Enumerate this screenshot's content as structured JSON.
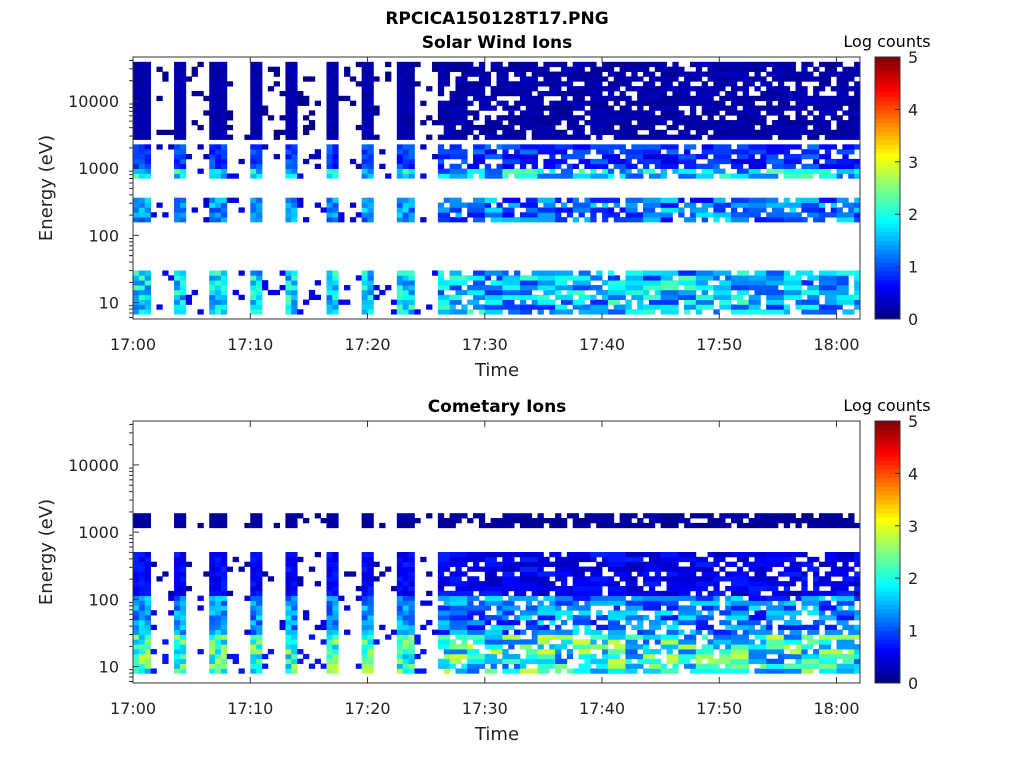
{
  "figure": {
    "title": "RPCICA150128T17.PNG"
  },
  "chart_data": [
    {
      "type": "heatmap",
      "title": "Solar Wind Ions",
      "xlabel": "Time",
      "ylabel": "Energy (eV)",
      "x_tick_labels": [
        "17:00",
        "17:10",
        "17:20",
        "17:30",
        "17:40",
        "17:50",
        "18:00"
      ],
      "x_ticks_minutes": [
        0,
        10,
        20,
        30,
        40,
        50,
        60
      ],
      "xlim_minutes": [
        0,
        62
      ],
      "y_scale": "log",
      "ylim": [
        5.7,
        45000
      ],
      "y_tick_labels": [
        "10",
        "100",
        "1000",
        "10000"
      ],
      "y_ticks": [
        10,
        100,
        1000,
        10000
      ],
      "colorbar": {
        "label": "Log counts",
        "range": [
          0,
          5
        ],
        "tick_labels": [
          "0",
          "1",
          "2",
          "3",
          "4",
          "5"
        ],
        "colormap": "jet"
      },
      "grid": false,
      "phases": [
        {
          "minutes": [
            0,
            26
          ],
          "cadence_min": 3.2,
          "description": "intermittent sweeps"
        },
        {
          "minutes": [
            26,
            62
          ],
          "cadence_min": 3.2,
          "description": "continuous broadband"
        }
      ],
      "bands": [
        {
          "energy_eV": [
            7,
            30
          ],
          "log_counts_max": 2.3
        },
        {
          "energy_eV": [
            150,
            350
          ],
          "log_counts_max": 1.8
        },
        {
          "energy_eV": [
            650,
            950
          ],
          "log_counts_max": 2.4
        },
        {
          "energy_eV": [
            1000,
            2200
          ],
          "log_counts_max": 1.2
        },
        {
          "energy_eV": [
            2500,
            40000
          ],
          "log_counts_max": 0.3
        }
      ]
    },
    {
      "type": "heatmap",
      "title": "Cometary Ions",
      "xlabel": "Time",
      "ylabel": "Energy (eV)",
      "x_tick_labels": [
        "17:00",
        "17:10",
        "17:20",
        "17:30",
        "17:40",
        "17:50",
        "18:00"
      ],
      "x_ticks_minutes": [
        0,
        10,
        20,
        30,
        40,
        50,
        60
      ],
      "xlim_minutes": [
        0,
        62
      ],
      "y_scale": "log",
      "ylim": [
        5.7,
        45000
      ],
      "y_tick_labels": [
        "10",
        "100",
        "1000",
        "10000"
      ],
      "y_ticks": [
        10,
        100,
        1000,
        10000
      ],
      "colorbar": {
        "label": "Log counts",
        "range": [
          0,
          5
        ],
        "tick_labels": [
          "0",
          "1",
          "2",
          "3",
          "4",
          "5"
        ],
        "colormap": "jet"
      },
      "grid": false,
      "phases": [
        {
          "minutes": [
            0,
            26
          ],
          "cadence_min": 3.2,
          "description": "intermittent sweeps"
        },
        {
          "minutes": [
            26,
            62
          ],
          "cadence_min": 3.2,
          "description": "continuous broadband"
        }
      ],
      "bands": [
        {
          "energy_eV": [
            8,
            30
          ],
          "log_counts_max": 2.9
        },
        {
          "energy_eV": [
            30,
            120
          ],
          "log_counts_max": 1.8
        },
        {
          "energy_eV": [
            120,
            500
          ],
          "log_counts_max": 0.8
        },
        {
          "energy_eV": [
            1200,
            2000
          ],
          "log_counts_max": 0.2
        }
      ]
    }
  ]
}
